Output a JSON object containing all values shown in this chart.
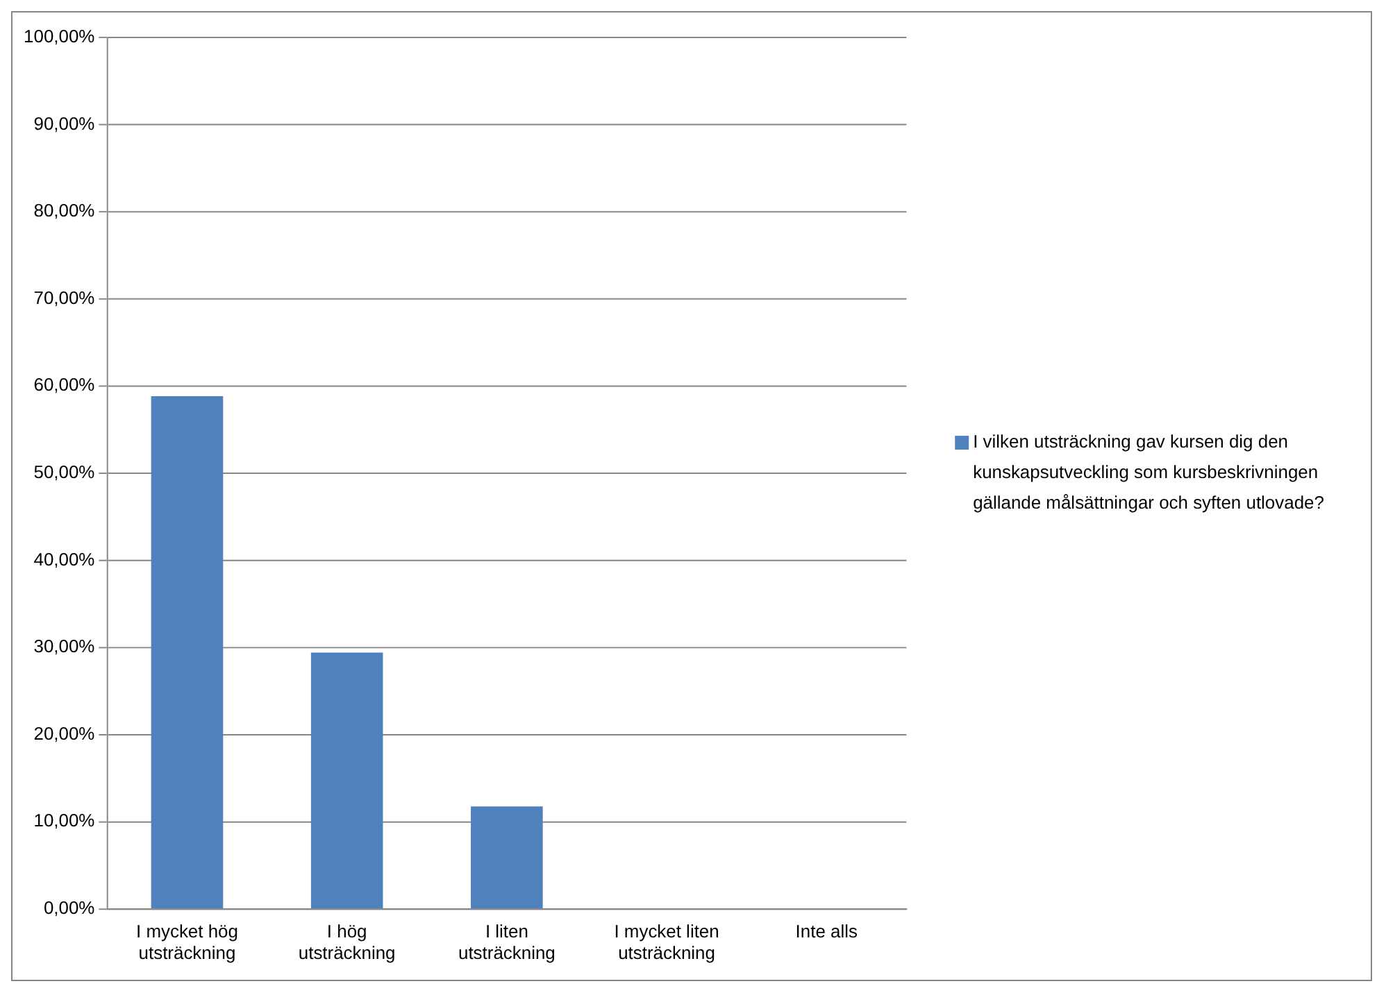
{
  "chart_data": {
    "type": "bar",
    "categories": [
      "I mycket hög utsträckning",
      "I hög utsträckning",
      "I liten utsträckning",
      "I mycket liten utsträckning",
      "Inte alls"
    ],
    "series": [
      {
        "name": "I vilken utsträckning gav kursen dig den kunskapsutveckling som kursbeskrivningen gällande målsättningar och syften utlovade?",
        "color": "#4f81bd",
        "values": [
          58.82,
          29.41,
          11.76,
          0,
          0
        ]
      }
    ],
    "ylim": [
      0,
      100
    ],
    "yticks": [
      {
        "value": 0,
        "label": "0,00%"
      },
      {
        "value": 10,
        "label": "10,00%"
      },
      {
        "value": 20,
        "label": "20,00%"
      },
      {
        "value": 30,
        "label": "30,00%"
      },
      {
        "value": 40,
        "label": "40,00%"
      },
      {
        "value": 50,
        "label": "50,00%"
      },
      {
        "value": 60,
        "label": "60,00%"
      },
      {
        "value": 70,
        "label": "70,00%"
      },
      {
        "value": 80,
        "label": "80,00%"
      },
      {
        "value": 90,
        "label": "90,00%"
      },
      {
        "value": 100,
        "label": "100,00%"
      }
    ],
    "grid": "y",
    "legend": "right"
  }
}
